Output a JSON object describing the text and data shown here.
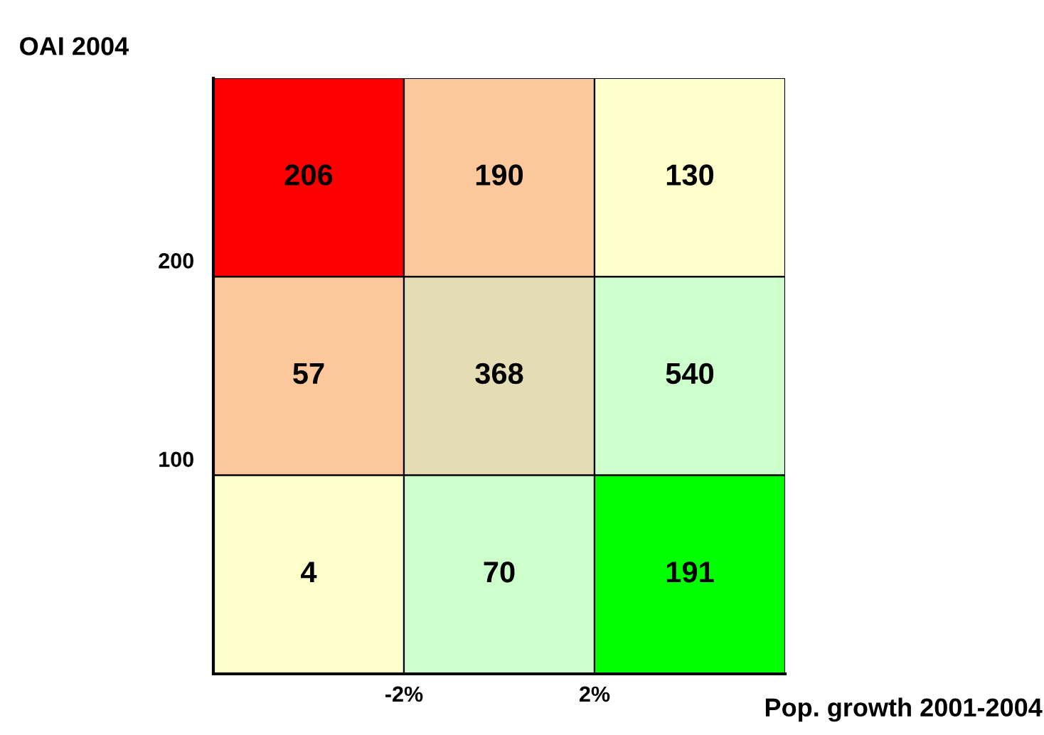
{
  "chart_data": {
    "type": "heatmap",
    "xlabel": "Pop. growth 2001-2004",
    "ylabel": "OAI 2004",
    "categories": [
      null,
      null,
      null
    ],
    "y_categories": [
      null,
      null,
      null
    ],
    "cells": [
      [
        206,
        190,
        130
      ],
      [
        57,
        368,
        540
      ],
      [
        4,
        70,
        191
      ]
    ],
    "colors": [
      [
        "#ff0000",
        "#fcc89b",
        "#ffffcc"
      ],
      [
        "#fcc89b",
        "#e4dcb4",
        "#ccffcc"
      ],
      [
        "#ffffcc",
        "#ccffcc",
        "#00ff00"
      ]
    ],
    "data_labels": true,
    "annotations": [
      "-2%",
      "2%",
      "100",
      "200"
    ]
  }
}
